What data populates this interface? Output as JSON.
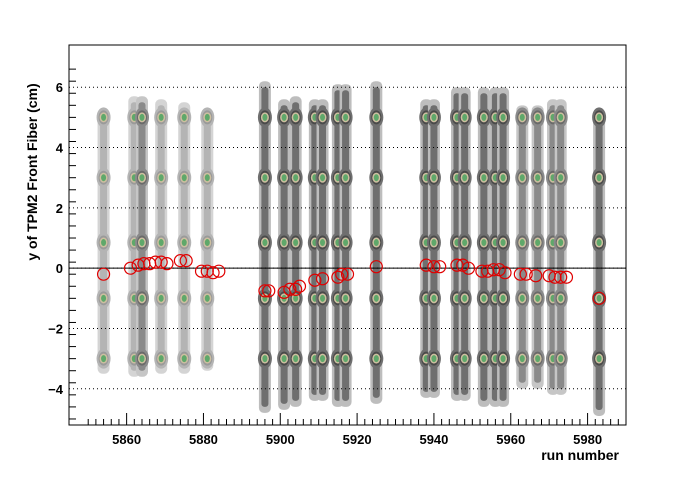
{
  "chart_data": {
    "type": "scatter",
    "title": "",
    "xlabel": "run number",
    "ylabel": "y of TPM2 Front Fiber (cm)",
    "xlim": [
      5845,
      5990
    ],
    "ylim": [
      -5.2,
      7.4
    ],
    "xticks": [
      5860,
      5880,
      5900,
      5920,
      5940,
      5960,
      5980
    ],
    "xtick_labels": [
      "5860",
      "5880",
      "5900",
      "5920",
      "5940",
      "5960",
      "5980"
    ],
    "yticks": [
      -4,
      -2,
      0,
      2,
      4,
      6
    ],
    "ytick_labels": [
      "−4",
      "−2",
      "0",
      "2",
      "4",
      "6"
    ],
    "grid": "horizontal dotted",
    "zero_line": 0,
    "distribution_runs": [
      {
        "x": 5854,
        "shade": "light",
        "ymin": -3.5,
        "ymax": 5.0
      },
      {
        "x": 5862,
        "shade": "light",
        "ymin": -3.6,
        "ymax": 5.7
      },
      {
        "x": 5864,
        "shade": "medium",
        "ymin": -3.6,
        "ymax": 5.7
      },
      {
        "x": 5869,
        "shade": "light",
        "ymin": -3.5,
        "ymax": 5.6
      },
      {
        "x": 5875,
        "shade": "light",
        "ymin": -3.5,
        "ymax": 5.5
      },
      {
        "x": 5881,
        "shade": "light",
        "ymin": -3.4,
        "ymax": 5.0
      },
      {
        "x": 5896,
        "shade": "dark",
        "ymin": -4.8,
        "ymax": 6.2
      },
      {
        "x": 5901,
        "shade": "dark",
        "ymin": -4.7,
        "ymax": 5.6
      },
      {
        "x": 5904,
        "shade": "dark",
        "ymin": -4.6,
        "ymax": 5.7
      },
      {
        "x": 5909,
        "shade": "dark",
        "ymin": -4.4,
        "ymax": 5.6
      },
      {
        "x": 5911,
        "shade": "dark",
        "ymin": -4.4,
        "ymax": 5.6
      },
      {
        "x": 5915,
        "shade": "dark",
        "ymin": -4.6,
        "ymax": 6.1
      },
      {
        "x": 5917,
        "shade": "dark",
        "ymin": -4.6,
        "ymax": 6.1
      },
      {
        "x": 5925,
        "shade": "dark",
        "ymin": -4.5,
        "ymax": 6.2
      },
      {
        "x": 5938,
        "shade": "dark",
        "ymin": -4.3,
        "ymax": 5.6
      },
      {
        "x": 5940,
        "shade": "dark",
        "ymin": -4.3,
        "ymax": 5.6
      },
      {
        "x": 5946,
        "shade": "dark",
        "ymin": -4.4,
        "ymax": 6.0
      },
      {
        "x": 5948,
        "shade": "dark",
        "ymin": -4.4,
        "ymax": 6.0
      },
      {
        "x": 5953,
        "shade": "dark",
        "ymin": -4.6,
        "ymax": 6.0
      },
      {
        "x": 5956,
        "shade": "dark",
        "ymin": -4.6,
        "ymax": 6.0
      },
      {
        "x": 5958,
        "shade": "dark",
        "ymin": -4.6,
        "ymax": 6.0
      },
      {
        "x": 5963,
        "shade": "medium",
        "ymin": -4.0,
        "ymax": 5.4
      },
      {
        "x": 5967,
        "shade": "medium",
        "ymin": -4.0,
        "ymax": 5.4
      },
      {
        "x": 5971,
        "shade": "medium",
        "ymin": -4.2,
        "ymax": 5.6
      },
      {
        "x": 5973,
        "shade": "medium",
        "ymin": -4.2,
        "ymax": 5.6
      },
      {
        "x": 5983,
        "shade": "dark",
        "ymin": -4.9,
        "ymax": 5.0
      }
    ],
    "fiber_positions": [
      -3.0,
      -1.0,
      0.85,
      3.0,
      5.0
    ],
    "series": [
      {
        "marker": "open-circle",
        "color": "#e00000",
        "points": [
          {
            "x": 5854,
            "y": -0.2
          },
          {
            "x": 5861,
            "y": 0.0
          },
          {
            "x": 5863,
            "y": 0.1
          },
          {
            "x": 5864.5,
            "y": 0.15
          },
          {
            "x": 5866,
            "y": 0.15
          },
          {
            "x": 5867.5,
            "y": 0.2
          },
          {
            "x": 5869,
            "y": 0.2
          },
          {
            "x": 5870.5,
            "y": 0.15
          },
          {
            "x": 5874,
            "y": 0.25
          },
          {
            "x": 5875.5,
            "y": 0.25
          },
          {
            "x": 5879.5,
            "y": -0.1
          },
          {
            "x": 5881,
            "y": -0.1
          },
          {
            "x": 5882.5,
            "y": -0.15
          },
          {
            "x": 5884,
            "y": -0.1
          },
          {
            "x": 5896,
            "y": -0.75
          },
          {
            "x": 5897,
            "y": -0.75
          },
          {
            "x": 5901,
            "y": -0.8
          },
          {
            "x": 5902.5,
            "y": -0.7
          },
          {
            "x": 5904,
            "y": -0.7
          },
          {
            "x": 5905,
            "y": -0.6
          },
          {
            "x": 5909,
            "y": -0.4
          },
          {
            "x": 5911,
            "y": -0.35
          },
          {
            "x": 5915,
            "y": -0.3
          },
          {
            "x": 5916,
            "y": -0.2
          },
          {
            "x": 5917.5,
            "y": -0.2
          },
          {
            "x": 5925,
            "y": 0.05
          },
          {
            "x": 5938,
            "y": 0.1
          },
          {
            "x": 5940,
            "y": 0.05
          },
          {
            "x": 5941.5,
            "y": 0.05
          },
          {
            "x": 5946,
            "y": 0.1
          },
          {
            "x": 5947.5,
            "y": 0.1
          },
          {
            "x": 5949,
            "y": 0.0
          },
          {
            "x": 5952.5,
            "y": -0.1
          },
          {
            "x": 5954,
            "y": -0.1
          },
          {
            "x": 5955.5,
            "y": -0.05
          },
          {
            "x": 5957,
            "y": -0.05
          },
          {
            "x": 5958.5,
            "y": -0.15
          },
          {
            "x": 5962.5,
            "y": -0.2
          },
          {
            "x": 5964,
            "y": -0.2
          },
          {
            "x": 5966.5,
            "y": -0.25
          },
          {
            "x": 5970,
            "y": -0.25
          },
          {
            "x": 5971.5,
            "y": -0.3
          },
          {
            "x": 5973,
            "y": -0.3
          },
          {
            "x": 5974.5,
            "y": -0.3
          },
          {
            "x": 5983,
            "y": -1.0
          }
        ]
      }
    ]
  }
}
